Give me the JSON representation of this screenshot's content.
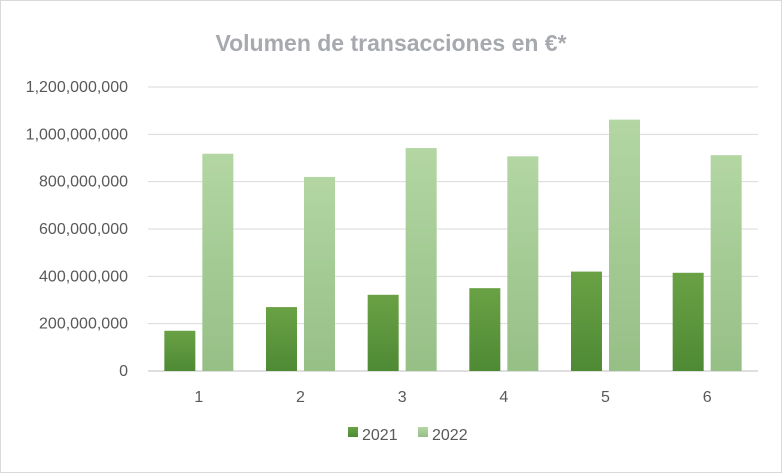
{
  "chart_data": {
    "type": "bar",
    "title": "Volumen de transacciones en €*",
    "xlabel": "",
    "ylabel": "",
    "categories": [
      "1",
      "2",
      "3",
      "4",
      "5",
      "6"
    ],
    "series": [
      {
        "name": "2021",
        "color": "#6aa145",
        "values": [
          170000000,
          270000000,
          322000000,
          350000000,
          420000000,
          415000000
        ]
      },
      {
        "name": "2022",
        "color": "#a8cd98",
        "values": [
          918000000,
          820000000,
          942000000,
          907000000,
          1062000000,
          912000000
        ]
      }
    ],
    "ylim": [
      0,
      1200000000
    ],
    "yticks": [
      "0",
      "200,000,000",
      "400,000,000",
      "600,000,000",
      "800,000,000",
      "1,000,000,000",
      "1,200,000,000"
    ],
    "grid": true,
    "legend_position": "bottom"
  }
}
